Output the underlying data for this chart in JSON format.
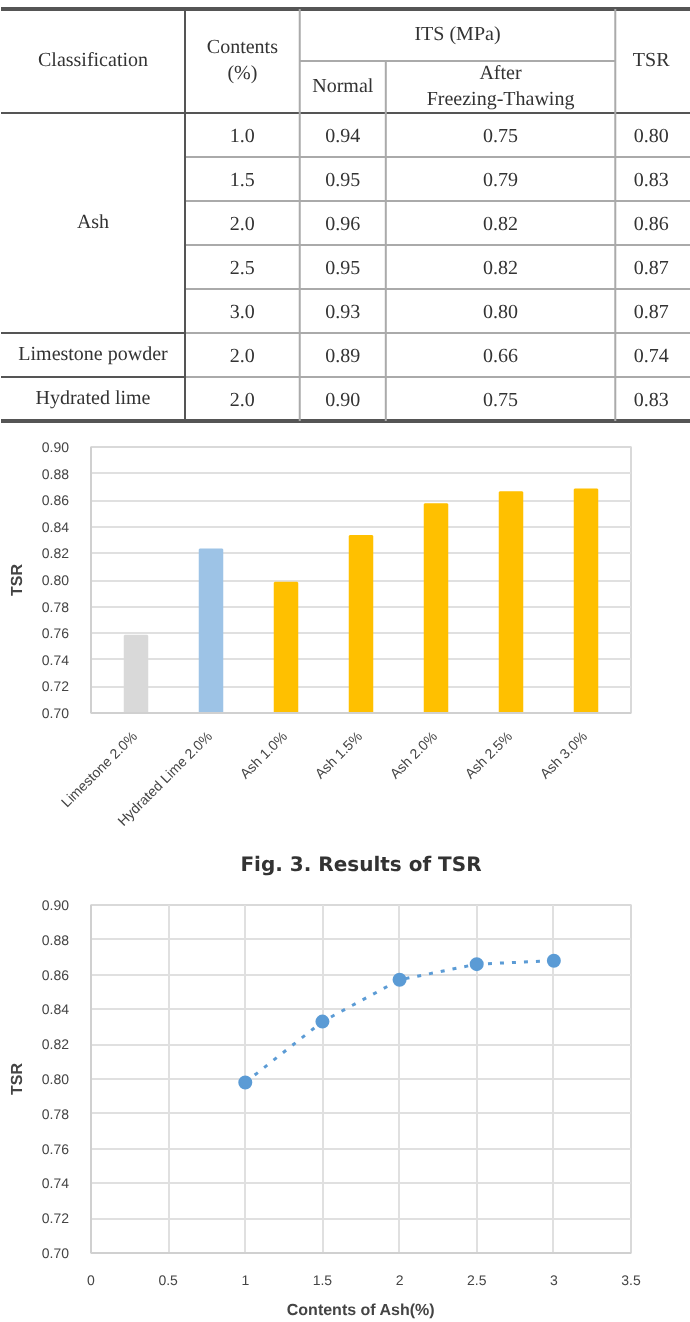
{
  "chart_data": [
    {
      "type": "heatmap",
      "ylabel": "Classification",
      "annotations": [
        "ITS (MPa)"
      ],
      "categories": [
        "Contents (%)",
        "Normal",
        "After Freezing-Thawing",
        "TSR"
      ],
      "y_categories": [
        null,
        null,
        "Ash",
        null,
        null,
        "Limestone powder",
        "Hydrated lime"
      ],
      "cells": [
        [
          1.0,
          0.94,
          0.75,
          0.8
        ],
        [
          1.5,
          0.95,
          0.79,
          0.83
        ],
        [
          2.0,
          0.96,
          0.82,
          0.86
        ],
        [
          2.5,
          0.95,
          0.82,
          0.87
        ],
        [
          3.0,
          0.93,
          0.8,
          0.87
        ],
        [
          2.0,
          0.89,
          0.66,
          0.74
        ],
        [
          2.0,
          0.9,
          0.75,
          0.83
        ]
      ],
      "cell_labels": [
        [
          "1.0",
          "0.94",
          "0.75",
          "0.80"
        ],
        [
          "1.5",
          "0.95",
          "0.79",
          "0.83"
        ],
        [
          "2.0",
          "0.96",
          "0.82",
          "0.86"
        ],
        [
          "2.5",
          "0.95",
          "0.82",
          "0.87"
        ],
        [
          "3.0",
          "0.93",
          "0.80",
          "0.87"
        ],
        [
          "2.0",
          "0.89",
          "0.66",
          "0.74"
        ],
        [
          "2.0",
          "0.90",
          "0.75",
          "0.83"
        ]
      ]
    },
    {
      "type": "bar",
      "ylabel": "TSR",
      "annotations": [
        "Fig. 3. Results of TSR"
      ],
      "categories": [
        "Limestone 2.0%",
        "Hydrated Lime 2.0%",
        "Ash 1.0%",
        "Ash 1.5%",
        "Ash 2.0%",
        "Ash 2.5%",
        "Ash 3.0%"
      ],
      "values": [
        0.758,
        0.823,
        0.798,
        0.833,
        0.857,
        0.866,
        0.868
      ],
      "colors": [
        "#d9d9d9",
        "#9dc3e6",
        "#ffc000",
        "#ffc000",
        "#ffc000",
        "#ffc000",
        "#ffc000"
      ],
      "ylim": [
        0.7,
        0.9
      ],
      "yticks": [
        {
          "value": 0.7,
          "label": "0.70"
        },
        {
          "value": 0.72,
          "label": "0.72"
        },
        {
          "value": 0.74,
          "label": "0.74"
        },
        {
          "value": 0.76,
          "label": "0.76"
        },
        {
          "value": 0.78,
          "label": "0.78"
        },
        {
          "value": 0.8,
          "label": "0.80"
        },
        {
          "value": 0.82,
          "label": "0.82"
        },
        {
          "value": 0.84,
          "label": "0.84"
        },
        {
          "value": 0.86,
          "label": "0.86"
        },
        {
          "value": 0.88,
          "label": "0.88"
        },
        {
          "value": 0.9,
          "label": "0.90"
        }
      ],
      "grid": "y"
    },
    {
      "type": "line",
      "xlabel": "Contents of Ash(%)",
      "ylabel": "TSR",
      "x": [
        1,
        1.5,
        2,
        2.5,
        3
      ],
      "series": [
        {
          "color": "#5b9bd5",
          "values": [
            0.798,
            0.833,
            0.857,
            0.866,
            0.868
          ]
        }
      ],
      "xlim": [
        0,
        3.5
      ],
      "xticks": [
        0,
        0.5,
        1,
        1.5,
        2,
        2.5,
        3,
        3.5
      ],
      "ylim": [
        0.7,
        0.9
      ],
      "yticks": [
        {
          "value": 0.7,
          "label": "0.70"
        },
        {
          "value": 0.72,
          "label": "0.72"
        },
        {
          "value": 0.74,
          "label": "0.74"
        },
        {
          "value": 0.76,
          "label": "0.76"
        },
        {
          "value": 0.78,
          "label": "0.78"
        },
        {
          "value": 0.8,
          "label": "0.80"
        },
        {
          "value": 0.82,
          "label": "0.82"
        },
        {
          "value": 0.84,
          "label": "0.84"
        },
        {
          "value": 0.86,
          "label": "0.86"
        },
        {
          "value": 0.88,
          "label": "0.88"
        },
        {
          "value": 0.9,
          "label": "0.90"
        }
      ],
      "grid": true,
      "marker": "circle",
      "line_style": "dotted"
    }
  ]
}
